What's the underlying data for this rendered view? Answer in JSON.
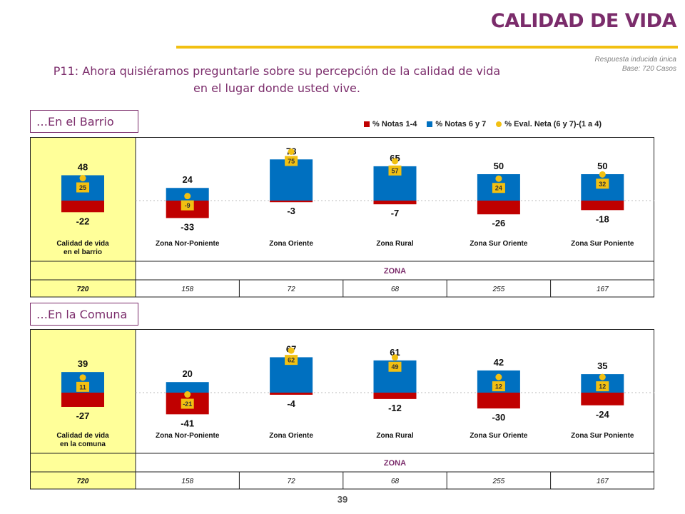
{
  "title": "CALIDAD DE VIDA",
  "response_note": [
    "Respuesta inducida única",
    "Base: 720 Casos"
  ],
  "question": [
    "P11: Ahora quisiéramos preguntarle sobre su percepción de la calidad de vida",
    "en el lugar donde usted vive."
  ],
  "legend": [
    {
      "label": "% Notas 1-4",
      "color": "#c00000"
    },
    {
      "label": "% Notas 6 y 7",
      "color": "#0070c0"
    },
    {
      "label": "% Eval. Neta (6 y 7)-(1 a 4)",
      "color": "#f2c012"
    }
  ],
  "colors": {
    "negative": "#c00000",
    "positive": "#0070c0",
    "net_marker": "#f2c012",
    "first_col_bg": "#ffff99",
    "accent": "#7b2c6b"
  },
  "page_number": "39",
  "chart_data": [
    {
      "type": "bar",
      "section": "…En el Barrio",
      "categories": [
        [
          "Calidad de vida",
          "en el barrio"
        ],
        [
          "Zona Nor-Poniente"
        ],
        [
          "Zona Oriente"
        ],
        [
          "Zona Rural"
        ],
        [
          "Zona Sur Oriente"
        ],
        [
          "Zona Sur Poniente"
        ]
      ],
      "series": [
        {
          "name": "% Notas 1-4",
          "values": [
            -22,
            -33,
            -3,
            -7,
            -26,
            -18
          ]
        },
        {
          "name": "% Notas 6 y 7",
          "values": [
            48,
            24,
            78,
            65,
            50,
            50
          ]
        },
        {
          "name": "% Eval. Neta (6 y 7)-(1 a 4)",
          "values": [
            25,
            -9,
            75,
            57,
            24,
            32
          ]
        }
      ],
      "group_label": "ZONA",
      "bases": [
        "720",
        "158",
        "72",
        "68",
        "255",
        "167"
      ]
    },
    {
      "type": "bar",
      "section": "…En la Comuna",
      "categories": [
        [
          "Calidad de vida",
          "en la comuna"
        ],
        [
          "Zona Nor-Poniente"
        ],
        [
          "Zona Oriente"
        ],
        [
          "Zona Rural"
        ],
        [
          "Zona Sur Oriente"
        ],
        [
          "Zona Sur Poniente"
        ]
      ],
      "series": [
        {
          "name": "% Notas 1-4",
          "values": [
            -27,
            -41,
            -4,
            -12,
            -30,
            -24
          ]
        },
        {
          "name": "% Notas 6 y 7",
          "values": [
            39,
            20,
            67,
            61,
            42,
            35
          ]
        },
        {
          "name": "% Eval. Neta (6 y 7)-(1 a 4)",
          "values": [
            11,
            -21,
            62,
            49,
            12,
            12
          ]
        }
      ],
      "group_label": "ZONA",
      "bases": [
        "720",
        "158",
        "72",
        "68",
        "255",
        "167"
      ]
    }
  ]
}
